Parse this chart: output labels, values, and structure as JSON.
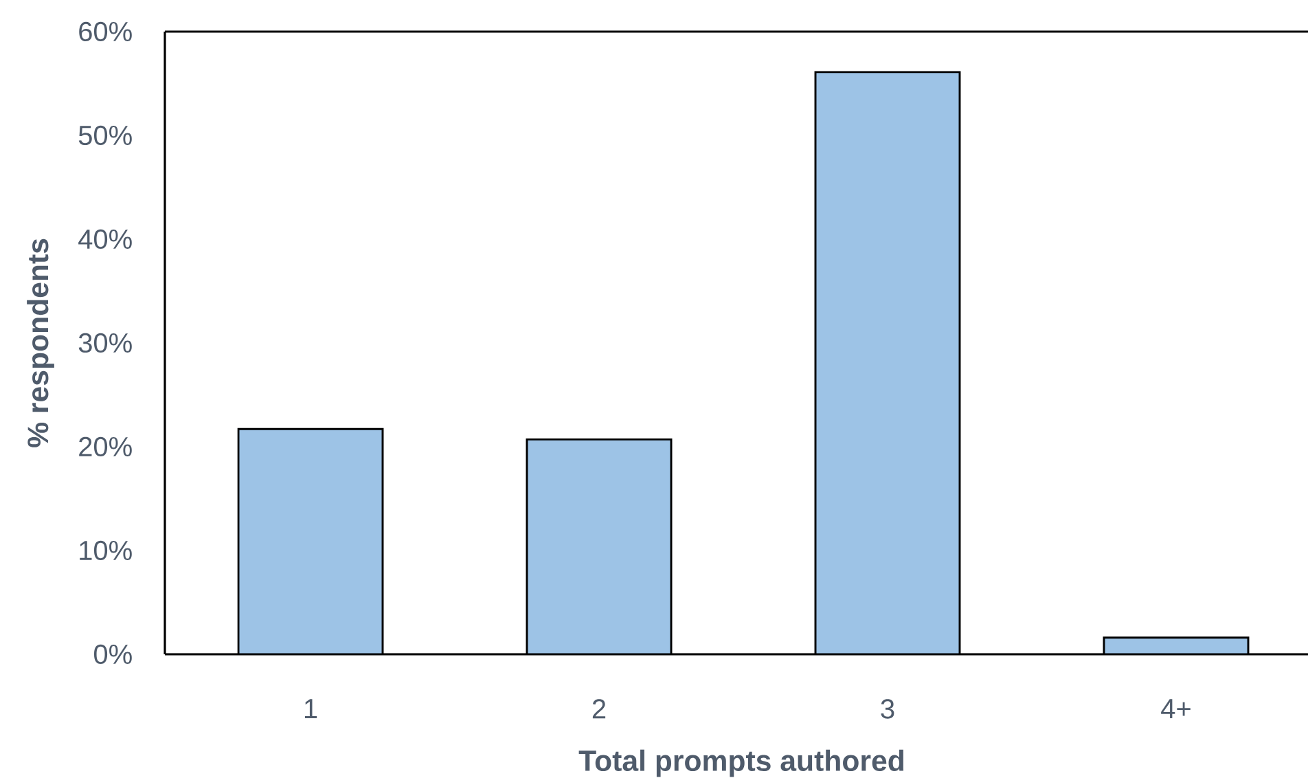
{
  "chart_data": {
    "type": "bar",
    "xlabel": "Total prompts authored",
    "ylabel": "% respondents",
    "categories": [
      "1",
      "2",
      "3",
      "4+"
    ],
    "values": [
      21.7,
      20.7,
      56.1,
      1.6
    ],
    "color": "#9dc3e6",
    "ylim": [
      0,
      60
    ],
    "yticks": [
      {
        "value": 0,
        "label": "0%"
      },
      {
        "value": 10,
        "label": "10%"
      },
      {
        "value": 20,
        "label": "20%"
      },
      {
        "value": 30,
        "label": "30%"
      },
      {
        "value": 40,
        "label": "40%"
      },
      {
        "value": 50,
        "label": "50%"
      },
      {
        "value": 60,
        "label": "60%"
      }
    ],
    "grid": false
  }
}
